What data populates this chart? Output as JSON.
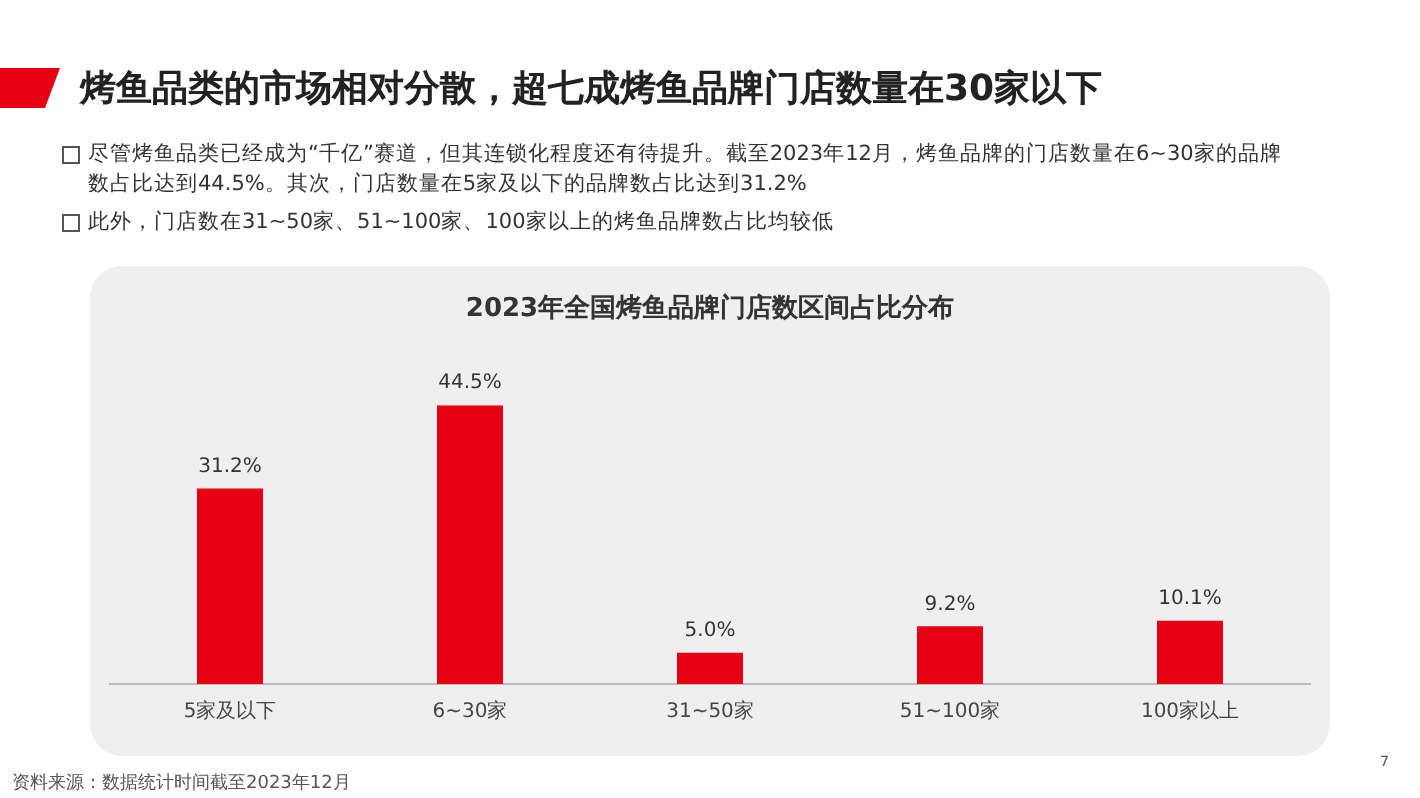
{
  "chart_data": {
    "type": "bar",
    "title": "2023年全国烤鱼品牌门店数区间占比分布",
    "categories": [
      "5家及以下",
      "6~30家",
      "31~50家",
      "51~100家",
      "100家以上"
    ],
    "values": [
      31.2,
      44.5,
      5.0,
      9.2,
      10.1
    ],
    "value_labels": [
      "31.2%",
      "44.5%",
      "5.0%",
      "9.2%",
      "10.1%"
    ],
    "color": "#e60012",
    "grid": false,
    "legend": false,
    "tick_labels": "x",
    "annotations": [
      "烤鱼品类的市场相对分散，超七成烤鱼品牌门店数量在30家以下",
      "尽管烤鱼品类已经成为“千亿”赛道，但其连锁化程度还有待提升。截至2023年12月，烤鱼品牌的门店数量在6~30家的品牌数占比达到44.5%。其次，门店数量在5家及以下的品牌数占比达到31.2%",
      "此外，门店数在31~50家、51~100家、100家以上的烤鱼品牌数占比均较低",
      "资料来源：数据统计时间截至2023年12月",
      "7"
    ]
  }
}
